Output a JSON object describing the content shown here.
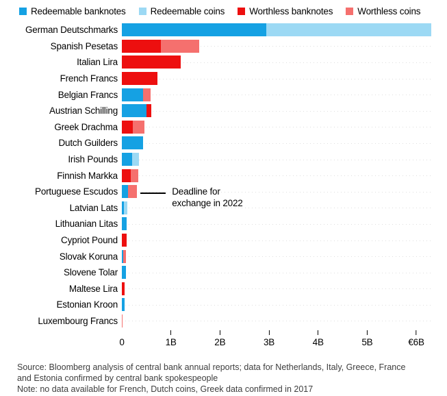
{
  "colors": {
    "redeemable_banknotes": "#15a1e3",
    "redeemable_coins": "#9cd9f4",
    "worthless_banknotes": "#ed0f0f",
    "worthless_coins": "#f5706e",
    "axis_text": "#000000",
    "note_text": "#3d3d3d",
    "row_dotted_line": "#dedede"
  },
  "legend": [
    {
      "key": "redeemable_banknotes",
      "label": "Redeemable banknotes"
    },
    {
      "key": "redeemable_coins",
      "label": "Redeemable coins"
    },
    {
      "key": "worthless_banknotes",
      "label": "Worthless banknotes"
    },
    {
      "key": "worthless_coins",
      "label": "Worthless coins"
    }
  ],
  "chart_data": {
    "type": "bar",
    "orientation": "horizontal",
    "unit": "EUR billions",
    "xlim": [
      0,
      6.32
    ],
    "x_ticks": [
      {
        "value": 0,
        "label": "0"
      },
      {
        "value": 1,
        "label": "1B"
      },
      {
        "value": 2,
        "label": "2B"
      },
      {
        "value": 3,
        "label": "3B"
      },
      {
        "value": 4,
        "label": "4B"
      },
      {
        "value": 5,
        "label": "5B"
      },
      {
        "value": 6,
        "label": "€6B"
      }
    ],
    "categories": [
      "German Deutschmarks",
      "Spanish Pesetas",
      "Italian Lira",
      "French Francs",
      "Belgian Francs",
      "Austrian Schilling",
      "Greek Drachma",
      "Dutch Guilders",
      "Irish Pounds",
      "Finnish Markka",
      "Portuguese Escudos",
      "Latvian Lats",
      "Lithuanian Litas",
      "Cypriot Pound",
      "Slovak Koruna",
      "Slovene Tolar",
      "Maltese Lira",
      "Estonian Kroon",
      "Luxembourg Francs"
    ],
    "series": [
      {
        "name": "Redeemable banknotes",
        "key": "redeemable_banknotes",
        "values": [
          2.95,
          0,
          0,
          0,
          0.43,
          0.5,
          0,
          0.43,
          0.21,
          0,
          0.13,
          0.04,
          0.1,
          0,
          0.03,
          0.09,
          0,
          0.05,
          0
        ]
      },
      {
        "name": "Redeemable coins",
        "key": "redeemable_coins",
        "values": [
          3.35,
          0,
          0,
          0,
          0,
          0,
          0,
          0,
          0.14,
          0,
          0,
          0.07,
          0,
          0,
          0,
          0,
          0,
          0,
          0
        ]
      },
      {
        "name": "Worthless banknotes",
        "key": "worthless_banknotes",
        "values": [
          0,
          0.8,
          1.2,
          0.72,
          0,
          0.1,
          0.23,
          0,
          0,
          0.18,
          0,
          0,
          0,
          0.1,
          0,
          0,
          0.06,
          0,
          0
        ]
      },
      {
        "name": "Worthless coins",
        "key": "worthless_coins",
        "values": [
          0,
          0.78,
          0,
          0,
          0.16,
          0,
          0.23,
          0,
          0,
          0.15,
          0.18,
          0,
          0,
          0,
          0.06,
          0,
          0,
          0,
          0.02
        ]
      }
    ],
    "annotation": {
      "line1": "Deadline for",
      "line2": "exchange in 2022",
      "target_category": "Portuguese Escudos",
      "category_index": 10
    },
    "legend_position": "top",
    "grid": "dotted-row-lines"
  },
  "footer": {
    "source_line1": "Source: Bloomberg analysis of central bank annual reports; data for Netherlands, Italy, Greece, France",
    "source_line2": "and Estonia confirmed by central bank spokespeople",
    "note": "Note: no data available for French, Dutch coins, Greek data confirmed in 2017"
  }
}
